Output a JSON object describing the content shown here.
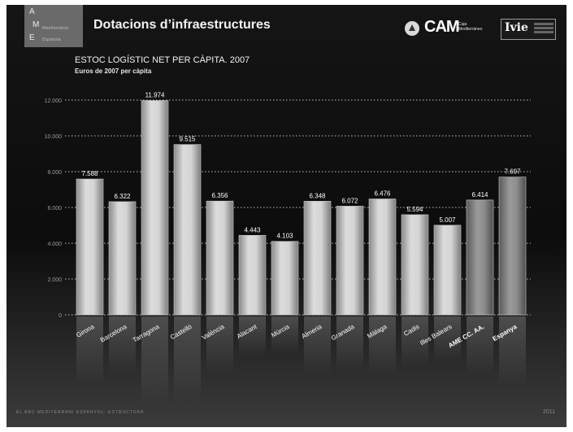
{
  "header": {
    "logo_letters": [
      "A",
      "M",
      "E"
    ],
    "logo_subs": [
      "Mediterrània",
      "Española"
    ],
    "title": "Dotacions d’infraestructures",
    "cam_text": "CAM",
    "cam_sub": "Caja Mediterráneo",
    "ivie_text": "Ivie"
  },
  "footer": {
    "left_text": "EL ARC MEDITERRANI ESPANYOL: ESTRUCTURA",
    "page_number": "2011"
  },
  "colors": {
    "bar_light": "#d0d0d0",
    "bar_dark": "#7a7a7a",
    "label": "#ffffff",
    "grid": "#bfbfbf"
  },
  "chart_data": {
    "type": "bar",
    "title": "ESTOC LOGÍSTIC NET PER CÀPITA. 2007",
    "subtitle": "Euros de 2007 per càpita",
    "categories": [
      "Girona",
      "Barcelona",
      "Tarragona",
      "Castelló",
      "València",
      "Alacant",
      "Múrcia",
      "Almeria",
      "Granada",
      "Màlaga",
      "Cadis",
      "Illes Balears",
      "AME CC. AA.",
      "Espanya"
    ],
    "values": [
      7588,
      6322,
      11974,
      9515,
      6356,
      4443,
      4103,
      6348,
      6072,
      6476,
      5594,
      5007,
      6414,
      7697
    ],
    "value_labels": [
      "7.588",
      "6.322",
      "11.974",
      "9.515",
      "6.356",
      "4.443",
      "4.103",
      "6.348",
      "6.072",
      "6.476",
      "5.594",
      "5.007",
      "6.414",
      "7.697"
    ],
    "highlight": [
      false,
      false,
      false,
      false,
      false,
      false,
      false,
      false,
      false,
      false,
      false,
      false,
      true,
      true
    ],
    "ylim": [
      0,
      12000
    ],
    "yticks": [
      0,
      2000,
      4000,
      6000,
      8000,
      10000,
      12000
    ],
    "ytick_labels": [
      "0",
      "2.000",
      "4.000",
      "6.000",
      "8.000",
      "10.000",
      "12.000"
    ],
    "grid": true,
    "xlabel": "",
    "ylabel": ""
  }
}
